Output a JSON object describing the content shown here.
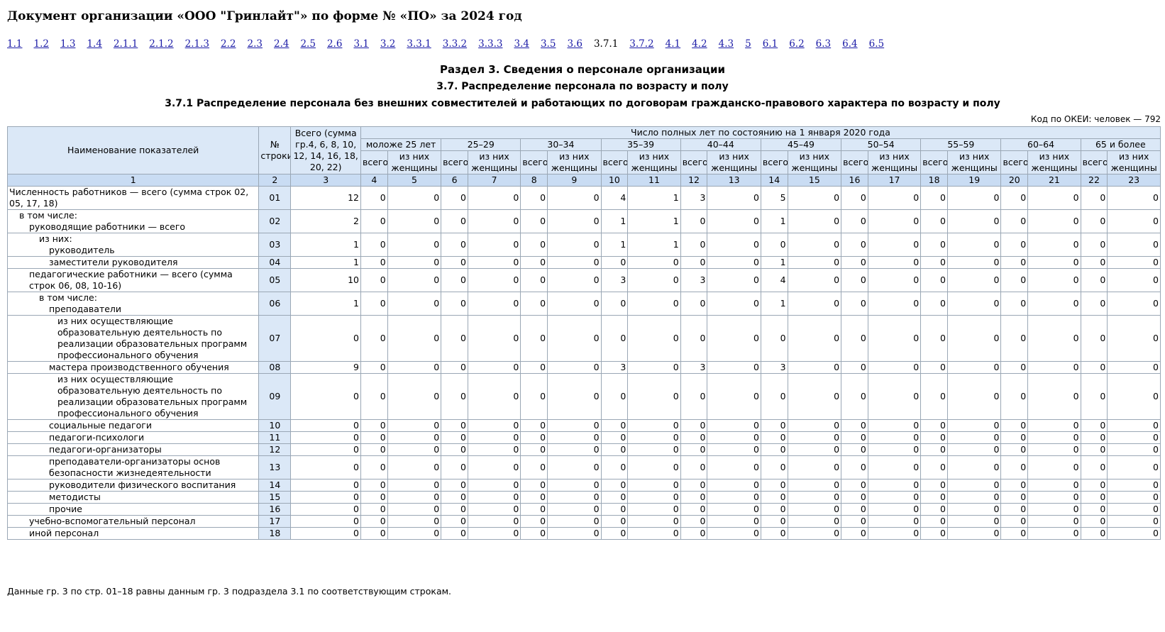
{
  "document": {
    "title": "Документ организации «ООО \"Гринлайт\"» по форме № «ПО» за 2024 год"
  },
  "nav": {
    "links": [
      "1.1",
      "1.2",
      "1.3",
      "1.4",
      "2.1.1",
      "2.1.2",
      "2.1.3",
      "2.2",
      "2.3",
      "2.4",
      "2.5",
      "2.6",
      "3.1",
      "3.2",
      "3.3.1",
      "3.3.2",
      "3.3.3",
      "3.4",
      "3.5",
      "3.6",
      "3.7.1",
      "3.7.2",
      "4.1",
      "4.2",
      "4.3",
      "5",
      "6.1",
      "6.2",
      "6.3",
      "6.4",
      "6.5"
    ],
    "current": "3.7.1"
  },
  "headings": {
    "section": "Раздел 3. Сведения о персонале организации",
    "subsection": "3.7. Распределение персонала по возрасту и полу",
    "table_title": "3.7.1 Распределение персонала без внешних совместителей и работающих по договорам гражданско-правового характера по возрасту и полу"
  },
  "okei": "Код по ОКЕИ: человек — 792",
  "table": {
    "header": {
      "name_col": "Наименование показателей",
      "row_no_col": "№ строки",
      "total_col": "Всего (сумма гр.4, 6, 8, 10, 12, 14, 16, 18, 20, 22)",
      "group_title": "Число полных лет по состоянию на 1 января 2020 года",
      "age_groups": [
        "моложе 25 лет",
        "25–29",
        "30–34",
        "35–39",
        "40–44",
        "45–49",
        "50–54",
        "55–59",
        "60–64",
        "65 и более"
      ],
      "sub_total": "всего",
      "sub_women": "из них женщины",
      "col_numbers": [
        "1",
        "2",
        "3",
        "4",
        "5",
        "6",
        "7",
        "8",
        "9",
        "10",
        "11",
        "12",
        "13",
        "14",
        "15",
        "16",
        "17",
        "18",
        "19",
        "20",
        "21",
        "22",
        "23"
      ]
    },
    "rows": [
      {
        "name": "Численность работников — всего (сумма строк 02, 05, 17, 18)",
        "indent": 0,
        "code": "01",
        "values": [
          "12",
          "0",
          "0",
          "0",
          "0",
          "0",
          "0",
          "4",
          "1",
          "3",
          "0",
          "5",
          "0",
          "0",
          "0",
          "0",
          "0",
          "0",
          "0",
          "0",
          "0"
        ]
      },
      {
        "name": "в том числе:",
        "name2": "руководящие работники — всего",
        "indent": 1,
        "indent2": 2,
        "code": "02",
        "values": [
          "2",
          "0",
          "0",
          "0",
          "0",
          "0",
          "0",
          "1",
          "1",
          "0",
          "0",
          "1",
          "0",
          "0",
          "0",
          "0",
          "0",
          "0",
          "0",
          "0",
          "0"
        ]
      },
      {
        "name": "из них:",
        "name2": "руководитель",
        "indent": 3,
        "indent2": 4,
        "code": "03",
        "values": [
          "1",
          "0",
          "0",
          "0",
          "0",
          "0",
          "0",
          "1",
          "1",
          "0",
          "0",
          "0",
          "0",
          "0",
          "0",
          "0",
          "0",
          "0",
          "0",
          "0",
          "0"
        ]
      },
      {
        "name": "заместители руководителя",
        "indent": 4,
        "code": "04",
        "values": [
          "1",
          "0",
          "0",
          "0",
          "0",
          "0",
          "0",
          "0",
          "0",
          "0",
          "0",
          "1",
          "0",
          "0",
          "0",
          "0",
          "0",
          "0",
          "0",
          "0",
          "0"
        ]
      },
      {
        "name": "педагогические работники — всего (сумма строк 06, 08, 10-16)",
        "indent": 2,
        "code": "05",
        "values": [
          "10",
          "0",
          "0",
          "0",
          "0",
          "0",
          "0",
          "3",
          "0",
          "3",
          "0",
          "4",
          "0",
          "0",
          "0",
          "0",
          "0",
          "0",
          "0",
          "0",
          "0"
        ]
      },
      {
        "name": "в том числе:",
        "name2": "преподаватели",
        "indent": 3,
        "indent2": 4,
        "code": "06",
        "values": [
          "1",
          "0",
          "0",
          "0",
          "0",
          "0",
          "0",
          "0",
          "0",
          "0",
          "0",
          "1",
          "0",
          "0",
          "0",
          "0",
          "0",
          "0",
          "0",
          "0",
          "0"
        ]
      },
      {
        "name": "из них осуществляющие образовательную деятельность по реализации образовательных программ профессионального обучения",
        "indent": 5,
        "code": "07",
        "values": [
          "0",
          "0",
          "0",
          "0",
          "0",
          "0",
          "0",
          "0",
          "0",
          "0",
          "0",
          "0",
          "0",
          "0",
          "0",
          "0",
          "0",
          "0",
          "0",
          "0",
          "0"
        ]
      },
      {
        "name": "мастера производственного обучения",
        "indent": 4,
        "code": "08",
        "values": [
          "9",
          "0",
          "0",
          "0",
          "0",
          "0",
          "0",
          "3",
          "0",
          "3",
          "0",
          "3",
          "0",
          "0",
          "0",
          "0",
          "0",
          "0",
          "0",
          "0",
          "0"
        ]
      },
      {
        "name": "из них осуществляющие образовательную деятельность по реализации образовательных программ профессионального обучения",
        "indent": 5,
        "code": "09",
        "values": [
          "0",
          "0",
          "0",
          "0",
          "0",
          "0",
          "0",
          "0",
          "0",
          "0",
          "0",
          "0",
          "0",
          "0",
          "0",
          "0",
          "0",
          "0",
          "0",
          "0",
          "0"
        ]
      },
      {
        "name": "социальные педагоги",
        "indent": 4,
        "code": "10",
        "values": [
          "0",
          "0",
          "0",
          "0",
          "0",
          "0",
          "0",
          "0",
          "0",
          "0",
          "0",
          "0",
          "0",
          "0",
          "0",
          "0",
          "0",
          "0",
          "0",
          "0",
          "0"
        ]
      },
      {
        "name": "педагоги-психологи",
        "indent": 4,
        "code": "11",
        "values": [
          "0",
          "0",
          "0",
          "0",
          "0",
          "0",
          "0",
          "0",
          "0",
          "0",
          "0",
          "0",
          "0",
          "0",
          "0",
          "0",
          "0",
          "0",
          "0",
          "0",
          "0"
        ]
      },
      {
        "name": "педагоги-организаторы",
        "indent": 4,
        "code": "12",
        "values": [
          "0",
          "0",
          "0",
          "0",
          "0",
          "0",
          "0",
          "0",
          "0",
          "0",
          "0",
          "0",
          "0",
          "0",
          "0",
          "0",
          "0",
          "0",
          "0",
          "0",
          "0"
        ]
      },
      {
        "name": "преподаватели-организаторы основ безопасности жизнедеятельности",
        "indent": 4,
        "code": "13",
        "values": [
          "0",
          "0",
          "0",
          "0",
          "0",
          "0",
          "0",
          "0",
          "0",
          "0",
          "0",
          "0",
          "0",
          "0",
          "0",
          "0",
          "0",
          "0",
          "0",
          "0",
          "0"
        ]
      },
      {
        "name": "руководители физического воспитания",
        "indent": 4,
        "code": "14",
        "values": [
          "0",
          "0",
          "0",
          "0",
          "0",
          "0",
          "0",
          "0",
          "0",
          "0",
          "0",
          "0",
          "0",
          "0",
          "0",
          "0",
          "0",
          "0",
          "0",
          "0",
          "0"
        ]
      },
      {
        "name": "методисты",
        "indent": 4,
        "code": "15",
        "values": [
          "0",
          "0",
          "0",
          "0",
          "0",
          "0",
          "0",
          "0",
          "0",
          "0",
          "0",
          "0",
          "0",
          "0",
          "0",
          "0",
          "0",
          "0",
          "0",
          "0",
          "0"
        ]
      },
      {
        "name": "прочие",
        "indent": 4,
        "code": "16",
        "values": [
          "0",
          "0",
          "0",
          "0",
          "0",
          "0",
          "0",
          "0",
          "0",
          "0",
          "0",
          "0",
          "0",
          "0",
          "0",
          "0",
          "0",
          "0",
          "0",
          "0",
          "0"
        ]
      },
      {
        "name": "учебно-вспомогательный персонал",
        "indent": 2,
        "code": "17",
        "values": [
          "0",
          "0",
          "0",
          "0",
          "0",
          "0",
          "0",
          "0",
          "0",
          "0",
          "0",
          "0",
          "0",
          "0",
          "0",
          "0",
          "0",
          "0",
          "0",
          "0",
          "0"
        ]
      },
      {
        "name": "иной персонал",
        "indent": 2,
        "code": "18",
        "values": [
          "0",
          "0",
          "0",
          "0",
          "0",
          "0",
          "0",
          "0",
          "0",
          "0",
          "0",
          "0",
          "0",
          "0",
          "0",
          "0",
          "0",
          "0",
          "0",
          "0",
          "0"
        ]
      }
    ]
  },
  "footnote": "Данные гр. 3 по стр. 01–18 равны данным гр. 3 подраздела 3.1 по соответствующим строкам.",
  "colors": {
    "header_bg": "#dbe8f7",
    "header_num_bg": "#c9dcf3",
    "border": "#9aa7b5",
    "link": "#1a1aa6"
  }
}
